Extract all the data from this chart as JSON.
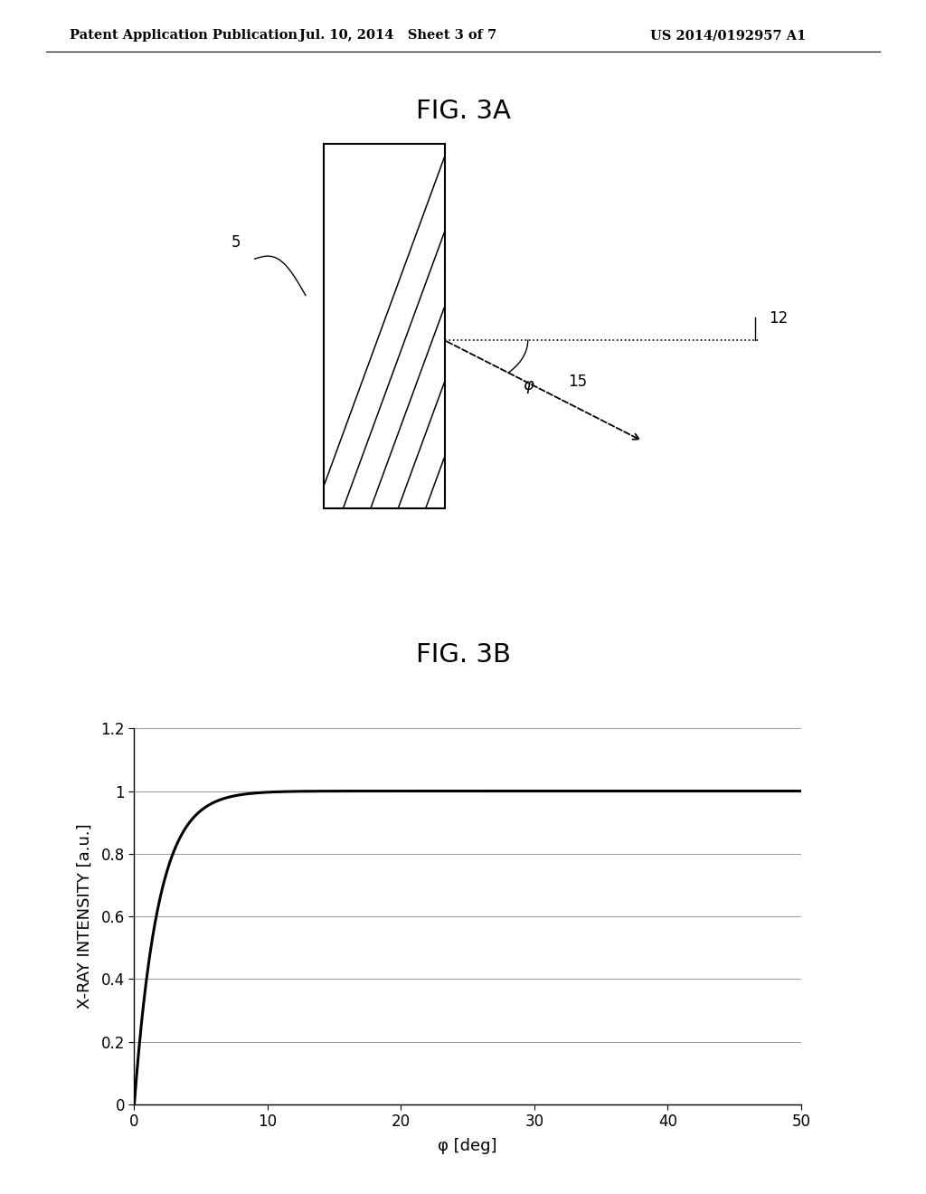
{
  "header_left": "Patent Application Publication",
  "header_mid": "Jul. 10, 2014   Sheet 3 of 7",
  "header_right": "US 2014/0192957 A1",
  "fig3a_title": "FIG. 3A",
  "fig3b_title": "FIG. 3B",
  "label_5": "5",
  "label_12": "12",
  "label_15": "15",
  "label_phi": "φ",
  "xlabel": "φ [deg]",
  "ylabel": "X-RAY INTENSITY [a.u.]",
  "xlim": [
    0,
    50
  ],
  "ylim": [
    0,
    1.2
  ],
  "xticks": [
    0,
    10,
    20,
    30,
    40,
    50
  ],
  "yticks": [
    0,
    0.2,
    0.4,
    0.6,
    0.8,
    1.0,
    1.2
  ],
  "line_color": "#000000",
  "background_color": "#ffffff",
  "header_fontsize": 10.5,
  "fig_label_fontsize": 21,
  "axis_label_fontsize": 13,
  "tick_fontsize": 12,
  "curve_tau": 1.8
}
